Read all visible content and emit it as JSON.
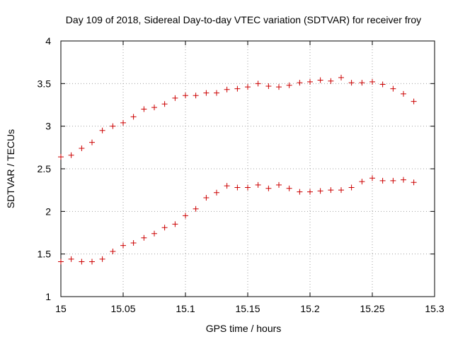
{
  "chart_data": {
    "type": "scatter",
    "title": "Day 109 of 2018, Sidereal Day-to-day VTEC variation (SDTVAR) for receiver froy",
    "xlabel": "GPS time / hours",
    "ylabel": "SDTVAR / TECUs",
    "xlim": [
      15,
      15.3
    ],
    "ylim": [
      1,
      4
    ],
    "xticks": [
      15,
      15.05,
      15.1,
      15.15,
      15.2,
      15.25,
      15.3
    ],
    "xtick_labels": [
      "15",
      "15.05",
      "15.1",
      "15.15",
      "15.2",
      "15.25",
      "15.3"
    ],
    "yticks": [
      1,
      1.5,
      2,
      2.5,
      3,
      3.5,
      4
    ],
    "ytick_labels": [
      "1",
      "1.5",
      "2",
      "2.5",
      "3",
      "3.5",
      "4"
    ],
    "grid": true,
    "marker": "+",
    "color": "#cc0000",
    "series": [
      {
        "name": "upper",
        "x": [
          15.0,
          15.0083,
          15.0167,
          15.025,
          15.0333,
          15.0417,
          15.05,
          15.0583,
          15.0667,
          15.075,
          15.0833,
          15.0917,
          15.1,
          15.1083,
          15.1167,
          15.125,
          15.1333,
          15.1417,
          15.15,
          15.1583,
          15.1667,
          15.175,
          15.1833,
          15.1917,
          15.2,
          15.2083,
          15.2167,
          15.225,
          15.2333,
          15.2417,
          15.25,
          15.2583,
          15.2667,
          15.275,
          15.2833
        ],
        "y": [
          2.64,
          2.66,
          2.74,
          2.81,
          2.95,
          3.0,
          3.04,
          3.11,
          3.2,
          3.22,
          3.26,
          3.33,
          3.36,
          3.36,
          3.39,
          3.39,
          3.43,
          3.44,
          3.46,
          3.5,
          3.47,
          3.46,
          3.48,
          3.51,
          3.52,
          3.54,
          3.53,
          3.57,
          3.51,
          3.51,
          3.52,
          3.49,
          3.44,
          3.38,
          3.29
        ]
      },
      {
        "name": "lower",
        "x": [
          15.0,
          15.0083,
          15.0167,
          15.025,
          15.0333,
          15.0417,
          15.05,
          15.0583,
          15.0667,
          15.075,
          15.0833,
          15.0917,
          15.1,
          15.1083,
          15.1167,
          15.125,
          15.1333,
          15.1417,
          15.15,
          15.1583,
          15.1667,
          15.175,
          15.1833,
          15.1917,
          15.2,
          15.2083,
          15.2167,
          15.225,
          15.2333,
          15.2417,
          15.25,
          15.2583,
          15.2667,
          15.275,
          15.2833
        ],
        "y": [
          1.41,
          1.44,
          1.41,
          1.41,
          1.44,
          1.53,
          1.6,
          1.63,
          1.69,
          1.74,
          1.81,
          1.85,
          1.95,
          2.03,
          2.16,
          2.22,
          2.3,
          2.28,
          2.28,
          2.31,
          2.27,
          2.31,
          2.27,
          2.23,
          2.23,
          2.24,
          2.25,
          2.25,
          2.28,
          2.35,
          2.39,
          2.36,
          2.36,
          2.37,
          2.34
        ]
      }
    ]
  }
}
